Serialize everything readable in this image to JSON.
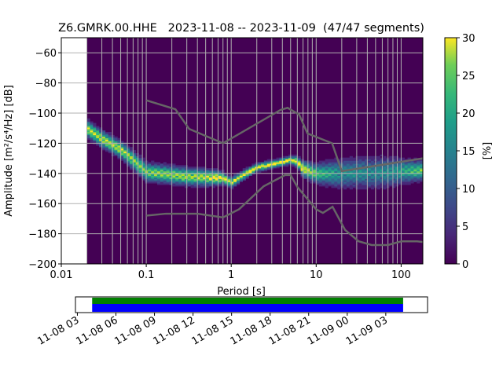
{
  "chart_data": {
    "type": "heatmap",
    "title": "Z6.GMRK.00.HHE   2023-11-08 -- 2023-11-09  (47/47 segments)",
    "xlabel": "Period [s]",
    "ylabel": "Amplitude [m²/s⁴/Hz] [dB]",
    "xscale": "log",
    "xlim": [
      0.01,
      180
    ],
    "ylim": [
      -200,
      -50
    ],
    "grid": true,
    "xticks": [
      {
        "value": 0.01,
        "label": "0.01"
      },
      {
        "value": 0.1,
        "label": "0.1"
      },
      {
        "value": 1,
        "label": "1"
      },
      {
        "value": 10,
        "label": "10"
      },
      {
        "value": 100,
        "label": "100"
      }
    ],
    "yticks": [
      {
        "value": -60,
        "label": "−60"
      },
      {
        "value": -80,
        "label": "−80"
      },
      {
        "value": -100,
        "label": "−100"
      },
      {
        "value": -120,
        "label": "−120"
      },
      {
        "value": -140,
        "label": "−140"
      },
      {
        "value": -160,
        "label": "−160"
      },
      {
        "value": -180,
        "label": "−180"
      },
      {
        "value": -200,
        "label": "−200"
      }
    ],
    "data_period_range": [
      0.02,
      180
    ],
    "mode_curve": [
      [
        0.02,
        -110
      ],
      [
        0.03,
        -117
      ],
      [
        0.05,
        -124
      ],
      [
        0.08,
        -134
      ],
      [
        0.1,
        -139
      ],
      [
        0.3,
        -142
      ],
      [
        0.8,
        -143
      ],
      [
        1,
        -146
      ],
      [
        1.5,
        -140
      ],
      [
        2,
        -136
      ],
      [
        3,
        -134
      ],
      [
        5,
        -131
      ],
      [
        6,
        -132
      ],
      [
        7,
        -137
      ],
      [
        10,
        -140
      ],
      [
        20,
        -140
      ],
      [
        180,
        -138
      ]
    ],
    "spread_curve": [
      [
        0.02,
        8
      ],
      [
        0.05,
        8
      ],
      [
        0.1,
        9
      ],
      [
        0.5,
        8
      ],
      [
        1,
        5
      ],
      [
        2,
        4
      ],
      [
        5,
        4
      ],
      [
        8,
        8
      ],
      [
        20,
        14
      ],
      [
        60,
        15
      ],
      [
        180,
        9
      ]
    ],
    "nhnm": [
      [
        0.1,
        -91.5
      ],
      [
        0.22,
        -97.4
      ],
      [
        0.32,
        -110.5
      ],
      [
        0.8,
        -120
      ],
      [
        3.8,
        -97.9
      ],
      [
        4.6,
        -96.5
      ],
      [
        6.3,
        -101
      ],
      [
        7.9,
        -113.5
      ],
      [
        15.4,
        -120
      ],
      [
        20,
        -138.5
      ],
      [
        180,
        -130
      ]
    ],
    "nlnm": [
      [
        0.1,
        -168
      ],
      [
        0.17,
        -166.7
      ],
      [
        0.4,
        -166.7
      ],
      [
        0.8,
        -169.2
      ],
      [
        1.24,
        -163.7
      ],
      [
        2.4,
        -148.6
      ],
      [
        4.3,
        -141.1
      ],
      [
        5,
        -141.1
      ],
      [
        6,
        -149
      ],
      [
        10,
        -163.8
      ],
      [
        12,
        -166.2
      ],
      [
        15.6,
        -162.1
      ],
      [
        21.9,
        -177.5
      ],
      [
        31.6,
        -185
      ],
      [
        45,
        -187.5
      ],
      [
        70,
        -187.5
      ],
      [
        101,
        -185
      ],
      [
        154,
        -185
      ],
      [
        180,
        -185.5
      ]
    ],
    "colorbar": {
      "label": "[%]",
      "range": [
        0,
        30
      ],
      "ticks": [
        {
          "value": 0,
          "label": "0"
        },
        {
          "value": 5,
          "label": "5"
        },
        {
          "value": 10,
          "label": "10"
        },
        {
          "value": 15,
          "label": "15"
        },
        {
          "value": 20,
          "label": "20"
        },
        {
          "value": 25,
          "label": "25"
        },
        {
          "value": 30,
          "label": "30"
        }
      ]
    },
    "timeline": {
      "ticks": [
        "11-08 03",
        "11-08 06",
        "11-08 09",
        "11-08 12",
        "11-08 15",
        "11-08 18",
        "11-08 21",
        "11-09 00",
        "11-09 03"
      ],
      "hours_per_tick": 3,
      "range_hours": [
        -0.15,
        27.25
      ],
      "coverage_hours": [
        1.15,
        25.35
      ],
      "colors": {
        "data": "#008000",
        "used": "#0000ff"
      }
    },
    "colors": {
      "background": "#440154",
      "grid": "#b0b0b0",
      "noise_models": "#666666"
    }
  }
}
